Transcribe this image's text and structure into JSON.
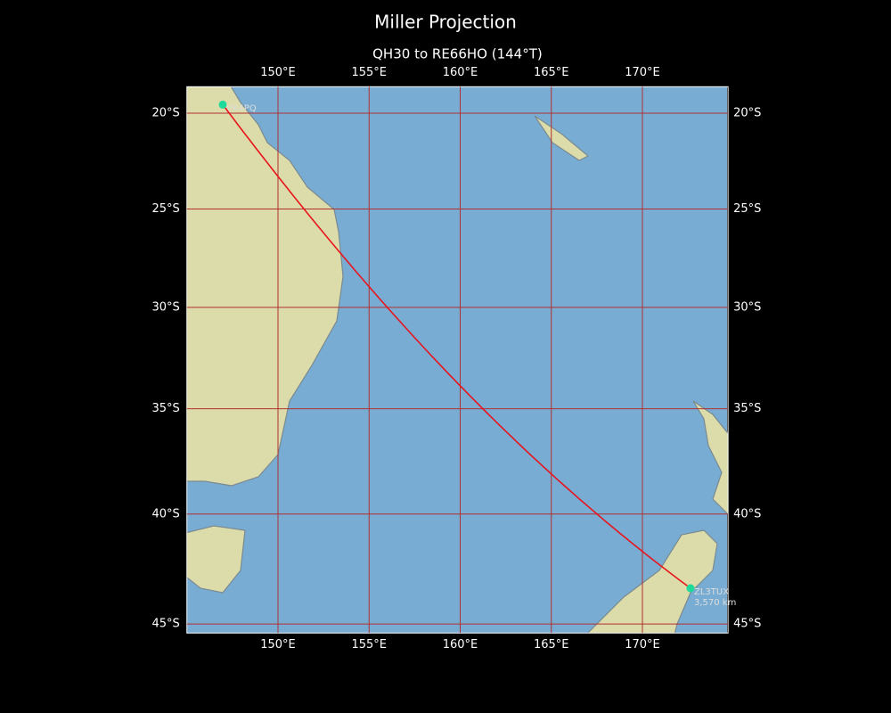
{
  "title": "Miller Projection",
  "subtitle": "QH30 to RE66HO (144°T)",
  "map": {
    "projection": "miller",
    "lonlim": [
      145,
      174.7
    ],
    "latlim": [
      -45.4,
      -18.6
    ],
    "grid_color": "#b03030",
    "lonticks": [
      {
        "value": 150,
        "label": "150°E"
      },
      {
        "value": 155,
        "label": "155°E"
      },
      {
        "value": 160,
        "label": "160°E"
      },
      {
        "value": 165,
        "label": "165°E"
      },
      {
        "value": 170,
        "label": "170°E"
      }
    ],
    "latticks": [
      {
        "value": -20,
        "label": "20°S"
      },
      {
        "value": -25,
        "label": "25°S"
      },
      {
        "value": -30,
        "label": "30°S"
      },
      {
        "value": -35,
        "label": "35°S"
      },
      {
        "value": -40,
        "label": "40°S"
      },
      {
        "value": -45,
        "label": "45°S"
      }
    ],
    "route_color": "#e8141c",
    "station_color": "#1ed99a",
    "stations": [
      {
        "label": "VK4PQ",
        "lon": 146.97,
        "lat": -19.55
      },
      {
        "label": "ZL3TUX",
        "lon": 172.64,
        "lat": -43.4
      }
    ],
    "distance_label": "3,570 km"
  }
}
